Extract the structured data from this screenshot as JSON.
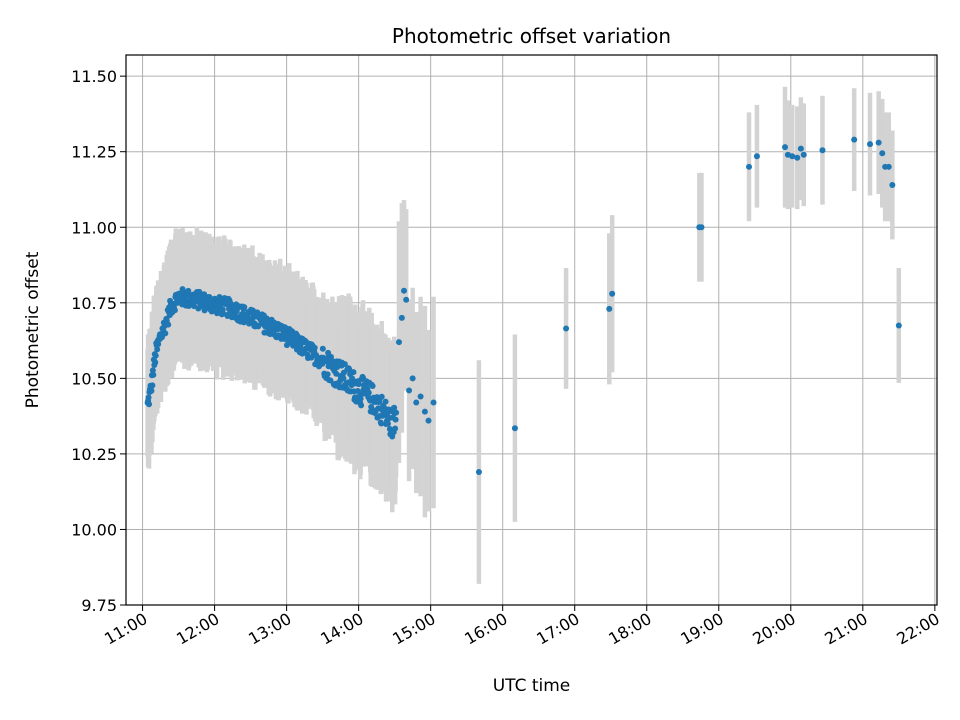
{
  "chart_data": {
    "type": "scatter",
    "title": "Photometric offset variation",
    "xlabel": "UTC time",
    "ylabel": "Photometric offset",
    "xlim": [
      10.77,
      22.03
    ],
    "ylim": [
      9.75,
      11.57
    ],
    "x_unit": "hours UTC",
    "xticks": [
      11,
      12,
      13,
      14,
      15,
      16,
      17,
      18,
      19,
      20,
      21,
      22
    ],
    "xtick_labels": [
      "11:00",
      "12:00",
      "13:00",
      "14:00",
      "15:00",
      "16:00",
      "17:00",
      "18:00",
      "19:00",
      "20:00",
      "21:00",
      "22:00"
    ],
    "yticks": [
      9.75,
      10.0,
      10.25,
      10.5,
      10.75,
      11.0,
      11.25,
      11.5
    ],
    "ytick_labels": [
      "9.75",
      "10.00",
      "10.25",
      "10.50",
      "10.75",
      "11.00",
      "11.25",
      "11.50"
    ],
    "grid": true,
    "colors": {
      "points": "#1f77b4",
      "errorbars": "#d3d3d3",
      "grid": "#b0b0b0",
      "axes": "#000000"
    },
    "error_size": 0.19,
    "dense_trend": [
      {
        "x": 11.07,
        "y": 10.41
      },
      {
        "x": 11.12,
        "y": 10.47
      },
      {
        "x": 11.18,
        "y": 10.58
      },
      {
        "x": 11.25,
        "y": 10.64
      },
      {
        "x": 11.32,
        "y": 10.68
      },
      {
        "x": 11.4,
        "y": 10.74
      },
      {
        "x": 11.5,
        "y": 10.77
      },
      {
        "x": 11.6,
        "y": 10.765
      },
      {
        "x": 11.75,
        "y": 10.76
      },
      {
        "x": 12.0,
        "y": 10.745
      },
      {
        "x": 12.25,
        "y": 10.73
      },
      {
        "x": 12.5,
        "y": 10.7
      },
      {
        "x": 12.75,
        "y": 10.675
      },
      {
        "x": 13.0,
        "y": 10.64
      },
      {
        "x": 13.25,
        "y": 10.6
      },
      {
        "x": 13.5,
        "y": 10.56
      },
      {
        "x": 13.75,
        "y": 10.51
      },
      {
        "x": 14.0,
        "y": 10.465
      },
      {
        "x": 14.2,
        "y": 10.43
      },
      {
        "x": 14.35,
        "y": 10.39
      },
      {
        "x": 14.45,
        "y": 10.35
      },
      {
        "x": 14.52,
        "y": 10.37
      }
    ],
    "series": [
      {
        "name": "offset",
        "points": [
          {
            "x": 15.67,
            "y": 10.19,
            "err": 0.37
          },
          {
            "x": 16.17,
            "y": 10.335,
            "err": 0.31
          },
          {
            "x": 16.88,
            "y": 10.665,
            "err": 0.2
          },
          {
            "x": 17.48,
            "y": 10.73,
            "err": 0.25
          },
          {
            "x": 17.52,
            "y": 10.78,
            "err": 0.26
          },
          {
            "x": 18.73,
            "y": 11.0,
            "err": 0.18
          },
          {
            "x": 18.76,
            "y": 11.0,
            "err": 0.18
          },
          {
            "x": 19.42,
            "y": 11.2,
            "err": 0.18
          },
          {
            "x": 19.53,
            "y": 11.235,
            "err": 0.17
          },
          {
            "x": 19.92,
            "y": 11.265,
            "err": 0.2
          },
          {
            "x": 19.96,
            "y": 11.24,
            "err": 0.18
          },
          {
            "x": 20.02,
            "y": 11.235,
            "err": 0.17
          },
          {
            "x": 20.09,
            "y": 11.23,
            "err": 0.17
          },
          {
            "x": 20.14,
            "y": 11.26,
            "err": 0.17
          },
          {
            "x": 20.18,
            "y": 11.24,
            "err": 0.17
          },
          {
            "x": 20.44,
            "y": 11.255,
            "err": 0.18
          },
          {
            "x": 20.88,
            "y": 11.29,
            "err": 0.17
          },
          {
            "x": 21.1,
            "y": 11.275,
            "err": 0.17
          },
          {
            "x": 21.22,
            "y": 11.28,
            "err": 0.17
          },
          {
            "x": 21.27,
            "y": 11.245,
            "err": 0.18
          },
          {
            "x": 21.31,
            "y": 11.2,
            "err": 0.18
          },
          {
            "x": 21.36,
            "y": 11.2,
            "err": 0.18
          },
          {
            "x": 21.41,
            "y": 11.14,
            "err": 0.18
          },
          {
            "x": 21.5,
            "y": 10.675,
            "err": 0.19
          },
          {
            "x": 14.56,
            "y": 10.62,
            "err": 0.4
          },
          {
            "x": 14.6,
            "y": 10.7,
            "err": 0.38
          },
          {
            "x": 14.63,
            "y": 10.79,
            "err": 0.3
          },
          {
            "x": 14.66,
            "y": 10.76,
            "err": 0.3
          },
          {
            "x": 14.7,
            "y": 10.46,
            "err": 0.3
          },
          {
            "x": 14.75,
            "y": 10.5,
            "err": 0.3
          },
          {
            "x": 14.8,
            "y": 10.42,
            "err": 0.3
          },
          {
            "x": 14.86,
            "y": 10.44,
            "err": 0.33
          },
          {
            "x": 14.92,
            "y": 10.39,
            "err": 0.35
          },
          {
            "x": 14.97,
            "y": 10.36,
            "err": 0.3
          },
          {
            "x": 15.04,
            "y": 10.42,
            "err": 0.35
          }
        ]
      }
    ]
  }
}
